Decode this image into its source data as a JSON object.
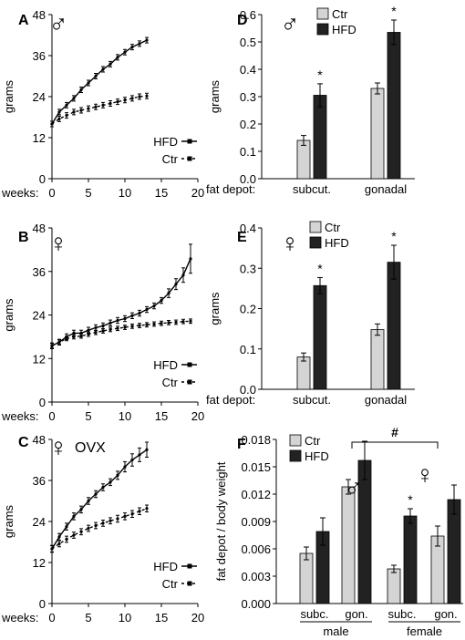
{
  "chart_data": [
    {
      "type": "line",
      "panel_letter": "A",
      "symbol": "♂",
      "symbol_text": "",
      "xlabel": "weeks:",
      "ylabel": "grams",
      "xlim": [
        0,
        20
      ],
      "ylim": [
        0,
        48
      ],
      "x_ticks": [
        "0",
        "5",
        "10",
        "15",
        "20"
      ],
      "y_ticks": [
        "0",
        "12",
        "24",
        "36",
        "48"
      ],
      "legend": "inside right",
      "series": [
        {
          "name": "HFD",
          "style": "solid",
          "x": [
            0,
            1,
            2,
            3,
            4,
            5,
            6,
            7,
            8,
            9,
            10,
            11,
            12,
            13
          ],
          "y": [
            16,
            19.5,
            21.5,
            23.5,
            26,
            28,
            30,
            32,
            33.5,
            35.5,
            37,
            38.5,
            39.5,
            40.5
          ],
          "err": [
            0.8,
            0.8,
            0.8,
            0.8,
            0.8,
            0.8,
            0.8,
            0.8,
            0.8,
            0.8,
            0.8,
            0.8,
            0.8,
            0.8
          ]
        },
        {
          "name": "Ctr",
          "style": "dashed",
          "x": [
            0,
            1,
            2,
            3,
            4,
            5,
            6,
            7,
            8,
            9,
            10,
            11,
            12,
            13
          ],
          "y": [
            16,
            17.5,
            18.5,
            19.5,
            20,
            20.5,
            21,
            21.5,
            22,
            22.5,
            23,
            23.5,
            24,
            24.2
          ],
          "err": [
            0.8,
            0.8,
            0.8,
            0.8,
            0.8,
            0.8,
            0.8,
            0.8,
            0.8,
            0.8,
            0.8,
            0.8,
            0.8,
            0.8
          ]
        }
      ]
    },
    {
      "type": "line",
      "panel_letter": "B",
      "symbol": "♀",
      "symbol_text": "",
      "xlabel": "weeks:",
      "ylabel": "grams",
      "xlim": [
        0,
        20
      ],
      "ylim": [
        0,
        48
      ],
      "x_ticks": [
        "0",
        "5",
        "10",
        "15",
        "20"
      ],
      "y_ticks": [
        "0",
        "12",
        "24",
        "36",
        "48"
      ],
      "legend": "inside right",
      "series": [
        {
          "name": "HFD",
          "style": "solid",
          "x": [
            0,
            1,
            2,
            3,
            4,
            5,
            6,
            7,
            8,
            9,
            10,
            11,
            12,
            13,
            14,
            15,
            16,
            17,
            18,
            19
          ],
          "y": [
            15.5,
            16.5,
            18,
            19,
            19,
            19.8,
            20.5,
            21,
            21.8,
            22.5,
            23,
            23.8,
            24.5,
            25.5,
            26.5,
            28,
            30,
            32.5,
            35,
            39.5
          ],
          "err": [
            0.8,
            0.8,
            0.8,
            0.8,
            0.8,
            0.8,
            0.8,
            0.8,
            0.8,
            0.8,
            0.8,
            0.8,
            0.8,
            0.8,
            0.8,
            0.8,
            1.2,
            1.5,
            2,
            4
          ]
        },
        {
          "name": "Ctr",
          "style": "dashed",
          "x": [
            0,
            1,
            2,
            3,
            4,
            5,
            6,
            7,
            8,
            9,
            10,
            11,
            12,
            13,
            14,
            15,
            16,
            17,
            18,
            19
          ],
          "y": [
            15.5,
            16.5,
            17.5,
            18,
            18.2,
            18.7,
            19.2,
            19.6,
            20,
            20.3,
            20.6,
            20.9,
            21.1,
            21.3,
            21.5,
            21.7,
            21.9,
            22,
            22.2,
            22.3
          ],
          "err": [
            0.6,
            0.6,
            0.6,
            0.6,
            0.6,
            0.6,
            0.6,
            0.6,
            0.6,
            0.6,
            0.6,
            0.6,
            0.6,
            0.6,
            0.6,
            0.6,
            0.6,
            0.6,
            0.6,
            0.6
          ]
        }
      ]
    },
    {
      "type": "line",
      "panel_letter": "C",
      "symbol": "♀",
      "symbol_text": "OVX",
      "xlabel": "weeks:",
      "ylabel": "grams",
      "xlim": [
        0,
        20
      ],
      "ylim": [
        0,
        48
      ],
      "x_ticks": [
        "0",
        "5",
        "10",
        "15",
        "20"
      ],
      "y_ticks": [
        "0",
        "12",
        "24",
        "36",
        "48"
      ],
      "legend": "inside right",
      "series": [
        {
          "name": "HFD",
          "style": "solid",
          "x": [
            0,
            1,
            2,
            3,
            4,
            5,
            6,
            7,
            8,
            9,
            10,
            11,
            12,
            13
          ],
          "y": [
            16,
            19.5,
            22.5,
            25.5,
            27.5,
            30,
            32,
            34,
            35.5,
            37.5,
            40,
            42,
            43.5,
            45
          ],
          "err": [
            1,
            1,
            1,
            1,
            1,
            1,
            1,
            1,
            1,
            1.2,
            1.5,
            1.8,
            2,
            2.2
          ]
        },
        {
          "name": "Ctr",
          "style": "dashed",
          "x": [
            0,
            1,
            2,
            3,
            4,
            5,
            6,
            7,
            8,
            9,
            10,
            11,
            12,
            13
          ],
          "y": [
            16,
            17.5,
            18.8,
            20,
            21,
            22,
            22.8,
            23.5,
            24.2,
            24.8,
            25.5,
            26.2,
            27,
            27.8
          ],
          "err": [
            0.9,
            0.9,
            0.9,
            0.9,
            0.9,
            0.9,
            0.9,
            0.9,
            0.9,
            1,
            1,
            1,
            1,
            1
          ]
        }
      ]
    },
    {
      "type": "bar",
      "panel_letter": "D",
      "symbol": "♂",
      "xlabel": "fat depot:",
      "ylabel": "grams",
      "ylim": [
        0,
        0.6
      ],
      "y_ticks": [
        "0.0",
        "0.1",
        "0.2",
        "0.3",
        "0.4",
        "0.5",
        "0.6"
      ],
      "categories": [
        "subcut.",
        "gonadal"
      ],
      "legend": "top-left",
      "series": [
        {
          "name": "Ctr",
          "color": "#d4d4d4",
          "values": [
            0.14,
            0.33
          ],
          "err": [
            0.018,
            0.02
          ]
        },
        {
          "name": "HFD",
          "color": "#222222",
          "values": [
            0.305,
            0.535
          ],
          "err": [
            0.042,
            0.045
          ]
        }
      ],
      "annotations": [
        "*",
        "*"
      ],
      "significant": [
        false,
        true,
        false,
        true
      ]
    },
    {
      "type": "bar",
      "panel_letter": "E",
      "symbol": "♀",
      "xlabel": "fat depot:",
      "ylabel": "grams",
      "ylim": [
        0,
        0.4
      ],
      "y_ticks": [
        "0.0",
        "0.1",
        "0.2",
        "0.3",
        "0.4"
      ],
      "categories": [
        "subcut.",
        "gonadal"
      ],
      "legend": "top-left",
      "series": [
        {
          "name": "Ctr",
          "color": "#d4d4d4",
          "values": [
            0.08,
            0.148
          ],
          "err": [
            0.01,
            0.014
          ]
        },
        {
          "name": "HFD",
          "color": "#222222",
          "values": [
            0.257,
            0.315
          ],
          "err": [
            0.02,
            0.042
          ]
        }
      ],
      "annotations": [
        "*",
        "*"
      ],
      "significant": [
        false,
        true,
        false,
        true
      ]
    },
    {
      "type": "bar",
      "panel_letter": "F",
      "xlabel": "",
      "ylabel": "fat depot / body weight",
      "ylim": [
        0,
        0.018
      ],
      "y_ticks": [
        "0.000",
        "0.003",
        "0.006",
        "0.009",
        "0.012",
        "0.015",
        "0.018"
      ],
      "categories": [
        "subc.",
        "gon.",
        "subc.",
        "gon."
      ],
      "groups": [
        "male",
        "female"
      ],
      "group_symbols": [
        "♂",
        "♀"
      ],
      "legend": "top-left",
      "series": [
        {
          "name": "Ctr",
          "color": "#d4d4d4",
          "values": [
            0.0055,
            0.0128,
            0.0038,
            0.0074
          ],
          "err": [
            0.0007,
            0.0008,
            0.0004,
            0.0011
          ]
        },
        {
          "name": "HFD",
          "color": "#222222",
          "values": [
            0.0079,
            0.0157,
            0.0096,
            0.0114
          ],
          "err": [
            0.0015,
            0.0021,
            0.0008,
            0.0016
          ]
        }
      ],
      "annotations": [
        "*",
        "#"
      ],
      "significant": [
        false,
        false,
        false,
        false,
        false,
        true,
        false,
        false
      ],
      "bracket_label": "#"
    }
  ]
}
